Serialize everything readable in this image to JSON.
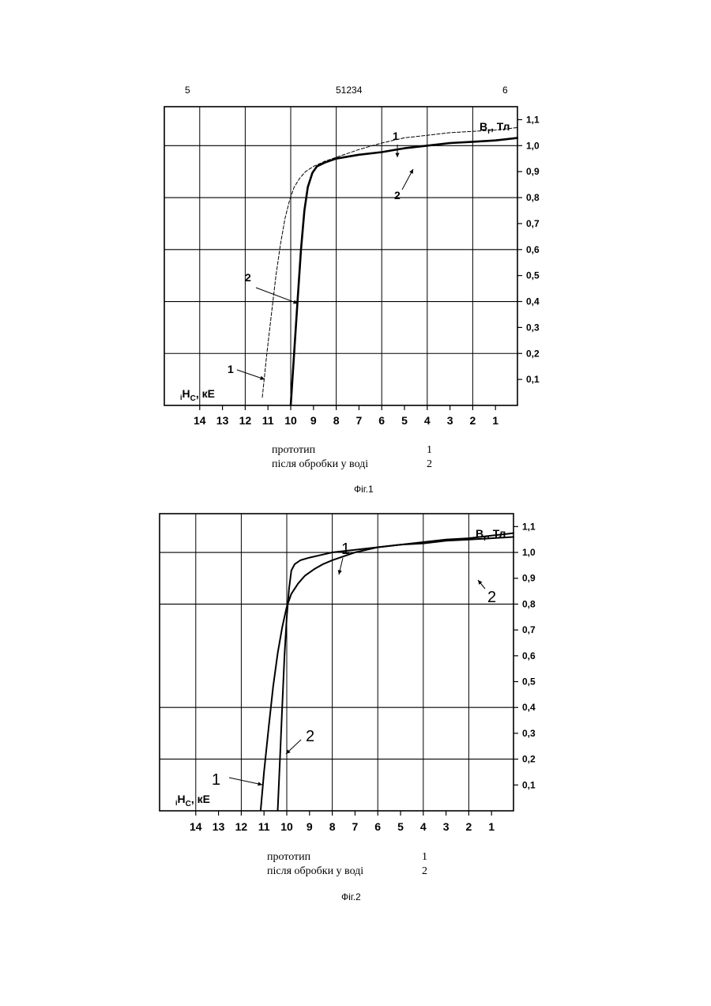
{
  "header": {
    "left": "5",
    "center": "51234",
    "right": "6"
  },
  "chart_data": [
    {
      "type": "line",
      "title": "",
      "ylabel": "Bₑ, Тл",
      "ylabel_main": "B",
      "ylabel_sub": "r",
      "ylabel_rest": ", Тл",
      "xlabel_pre": "i",
      "xlabel_main": "H",
      "xlabel_sub": "C",
      "xlabel_rest": ", кЕ",
      "x_reversed": true,
      "xlim": [
        0,
        15
      ],
      "ylim": [
        0,
        1.15
      ],
      "x_ticks": [
        "14",
        "13",
        "12",
        "11",
        "10",
        "9",
        "8",
        "7",
        "6",
        "5",
        "4",
        "3",
        "2",
        "1"
      ],
      "y_ticks": [
        "1,1",
        "1,0",
        "0,9",
        "0,8",
        "0,7",
        "0,6",
        "0,5",
        "0,4",
        "0,3",
        "0,2",
        "0,1"
      ],
      "major_y": [
        0.2,
        0.4,
        0.6,
        0.8,
        1.0
      ],
      "series": [
        {
          "name": "1",
          "style": "thin",
          "x": [
            11.25,
            11.05,
            10.85,
            10.65,
            10.45,
            10.25,
            10.05,
            9.85,
            9.6,
            9.35,
            9.0,
            8.5,
            8.0,
            7.0,
            6.0,
            5.0,
            4.0,
            3.0,
            2.0,
            1.0,
            0.0
          ],
          "y": [
            0.03,
            0.2,
            0.35,
            0.5,
            0.62,
            0.72,
            0.79,
            0.84,
            0.875,
            0.9,
            0.92,
            0.94,
            0.955,
            0.985,
            1.01,
            1.03,
            1.04,
            1.05,
            1.055,
            1.06,
            1.07
          ]
        },
        {
          "name": "2",
          "style": "thick",
          "x": [
            10.0,
            9.85,
            9.7,
            9.55,
            9.4,
            9.25,
            9.05,
            8.85,
            8.5,
            8.0,
            7.0,
            6.0,
            5.0,
            4.0,
            3.0,
            2.0,
            1.0,
            0.0
          ],
          "y": [
            0.0,
            0.2,
            0.4,
            0.6,
            0.75,
            0.84,
            0.895,
            0.92,
            0.935,
            0.95,
            0.965,
            0.975,
            0.99,
            1.0,
            1.01,
            1.015,
            1.02,
            1.03
          ]
        }
      ],
      "annotations": [
        "1",
        "2",
        "2",
        "1"
      ],
      "legend": [
        {
          "label": "прототип",
          "num": "1"
        },
        {
          "label": "після обробки у воді",
          "num": "2"
        }
      ],
      "caption": "Фіг.1"
    },
    {
      "type": "line",
      "title": "",
      "ylabel": "Bₑ, Тл",
      "ylabel_main": "B",
      "ylabel_sub": "r",
      "ylabel_rest": ", Тл",
      "xlabel_pre": "i",
      "xlabel_main": "H",
      "xlabel_sub": "C",
      "xlabel_rest": ", кЕ",
      "x_reversed": true,
      "xlim": [
        0,
        15
      ],
      "ylim": [
        0,
        1.15
      ],
      "x_ticks": [
        "14",
        "13",
        "12",
        "11",
        "10",
        "9",
        "8",
        "7",
        "6",
        "5",
        "4",
        "3",
        "2",
        "1"
      ],
      "y_ticks": [
        "1,1",
        "1,0",
        "0,9",
        "0,8",
        "0,7",
        "0,6",
        "0,5",
        "0,4",
        "0,3",
        "0,2",
        "0,1"
      ],
      "major_y": [
        0.2,
        0.4,
        0.8,
        1.0
      ],
      "series": [
        {
          "name": "1",
          "style": "normal",
          "x": [
            11.15,
            11.0,
            10.8,
            10.6,
            10.4,
            10.2,
            10.0,
            9.8,
            9.5,
            9.2,
            8.8,
            8.4,
            8.0,
            7.0,
            6.0,
            5.0,
            4.0,
            3.0,
            2.0,
            1.0,
            0.0
          ],
          "y": [
            0.0,
            0.15,
            0.32,
            0.48,
            0.61,
            0.71,
            0.79,
            0.84,
            0.88,
            0.91,
            0.935,
            0.955,
            0.97,
            1.0,
            1.02,
            1.03,
            1.04,
            1.05,
            1.055,
            1.065,
            1.075
          ]
        },
        {
          "name": "2",
          "style": "normal",
          "x": [
            10.4,
            10.3,
            10.2,
            10.1,
            10.0,
            9.9,
            9.8,
            9.65,
            9.4,
            9.0,
            8.5,
            8.0,
            7.0,
            6.0,
            5.0,
            4.0,
            3.0,
            2.0,
            1.0,
            0.0
          ],
          "y": [
            0.0,
            0.2,
            0.4,
            0.6,
            0.75,
            0.86,
            0.93,
            0.955,
            0.97,
            0.98,
            0.99,
            1.0,
            1.01,
            1.02,
            1.03,
            1.035,
            1.045,
            1.05,
            1.055,
            1.06
          ]
        }
      ],
      "annotations": [
        "1",
        "2",
        "2",
        "1"
      ],
      "legend": [
        {
          "label": "прототип",
          "num": "1"
        },
        {
          "label": "після обробки у воді",
          "num": "2"
        }
      ],
      "caption": "Фіг.2"
    }
  ]
}
